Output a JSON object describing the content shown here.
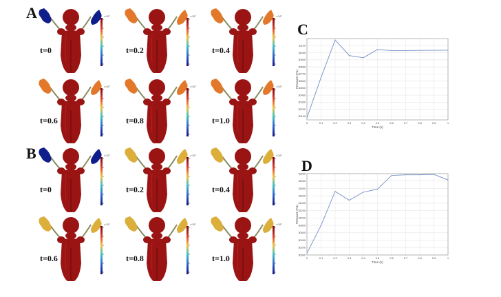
{
  "panels": {
    "A": "A",
    "B": "B",
    "C": "C",
    "D": "D"
  },
  "time_labels": {
    "A": [
      "t=0",
      "t=0.2",
      "t=0.4",
      "t=0.6",
      "t=0.8",
      "t=1.0"
    ],
    "B": [
      "t=0",
      "t=0.2",
      "t=0.4",
      "t=0.6",
      "t=0.8",
      "t=1.0"
    ]
  },
  "colorbar": {
    "exponent": "×10⁴"
  },
  "colors": {
    "body_red": "#9a1414",
    "lung_blue": "#0f1e8a",
    "lung_orange": "#e3782a",
    "lung_yellow": "#dcae3a",
    "line": "#7e96c8",
    "grid": "#e6e6e6"
  },
  "chart_data": [
    {
      "panel": "C",
      "type": "line",
      "xlabel": "Time (s)",
      "ylabel": "Pressure (Pa)",
      "x": [
        0,
        0.1,
        0.2,
        0.3,
        0.4,
        0.5,
        0.6,
        0.7,
        0.8,
        0.9,
        1.0
      ],
      "y": [
        30080,
        30650,
        31180,
        30960,
        30930,
        31045,
        31030,
        31030,
        31032,
        31034,
        31036
      ],
      "xlim": [
        0,
        1
      ],
      "ylim": [
        30050,
        31200
      ],
      "xticks": [
        "0",
        "0.1",
        "0.2",
        "0.3",
        "0.4",
        "0.5",
        "0.6",
        "0.7",
        "0.8",
        "0.9",
        "1"
      ],
      "yticks": [
        "30100",
        "30200",
        "30300",
        "30400",
        "30500",
        "30600",
        "30700",
        "30800",
        "30900",
        "31000",
        "31100"
      ],
      "grid": true
    },
    {
      "panel": "D",
      "type": "line",
      "xlabel": "Time (s)",
      "ylabel": "Pressure (Pa)",
      "x": [
        0,
        0.1,
        0.2,
        0.3,
        0.4,
        0.5,
        0.6,
        0.7,
        0.8,
        0.9,
        1.0
      ],
      "y": [
        30050,
        30800,
        31720,
        31480,
        31700,
        31780,
        32150,
        32170,
        32170,
        32180,
        32030
      ],
      "xlim": [
        0,
        1
      ],
      "ylim": [
        30000,
        32200
      ],
      "xticks": [
        "0",
        "0.1",
        "0.2",
        "0.3",
        "0.4",
        "0.5",
        "0.6",
        "0.7",
        "0.8",
        "0.9",
        "1"
      ],
      "yticks": [
        "30000",
        "30200",
        "30400",
        "30600",
        "30800",
        "31000",
        "31200",
        "31400",
        "31600",
        "31800",
        "32000",
        "32200"
      ],
      "grid": true
    }
  ]
}
